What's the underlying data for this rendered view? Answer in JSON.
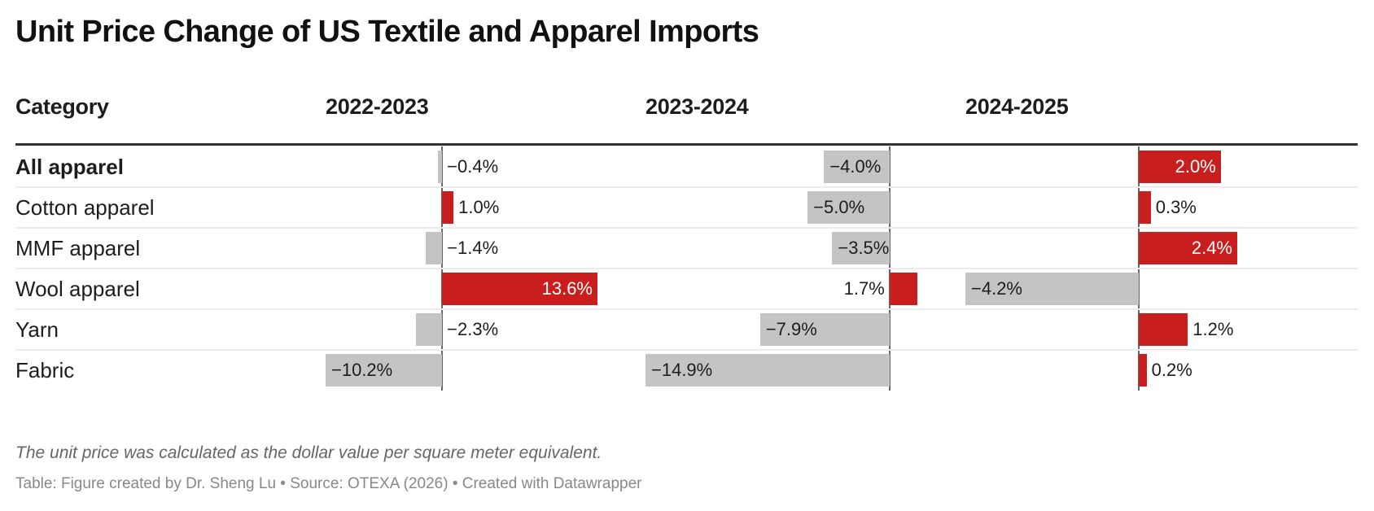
{
  "chart_data": {
    "type": "bar",
    "title": "Unit Price Change of US Textile and Apparel Imports",
    "category_header": "Category",
    "categories": [
      "All apparel",
      "Cotton apparel",
      "MMF apparel",
      "Wool apparel",
      "Yarn",
      "Fabric"
    ],
    "bold_categories": [
      "All apparel"
    ],
    "series": [
      {
        "name": "2022-2023",
        "values": [
          -0.4,
          1.0,
          -1.4,
          13.6,
          -2.3,
          -10.2
        ],
        "labels": [
          "−0.4%",
          "1.0%",
          "−1.4%",
          "13.6%",
          "−2.3%",
          "−10.2%"
        ]
      },
      {
        "name": "2023-2024",
        "values": [
          -4.0,
          -5.0,
          -3.5,
          1.7,
          -7.9,
          -14.9
        ],
        "labels": [
          "−4.0%",
          "−5.0%",
          "−3.5%",
          "1.7%",
          "−7.9%",
          "−14.9%"
        ]
      },
      {
        "name": "2024-2025",
        "values": [
          2.0,
          0.3,
          2.4,
          -4.2,
          1.2,
          0.2
        ],
        "labels": [
          "2.0%",
          "0.3%",
          "2.4%",
          "−4.2%",
          "1.2%",
          "0.2%"
        ]
      }
    ],
    "value_unit": "%",
    "colors": {
      "positive": "#c81e1e",
      "negative": "#c4c4c4",
      "zero_line": "#666666"
    },
    "grid": false,
    "legend": "none"
  },
  "notes": {
    "description": "The unit price was calculated as the dollar value per square meter equivalent.",
    "source": "Table: Figure created by Dr. Sheng Lu • Source: OTEXA (2026) • Created with Datawrapper"
  }
}
